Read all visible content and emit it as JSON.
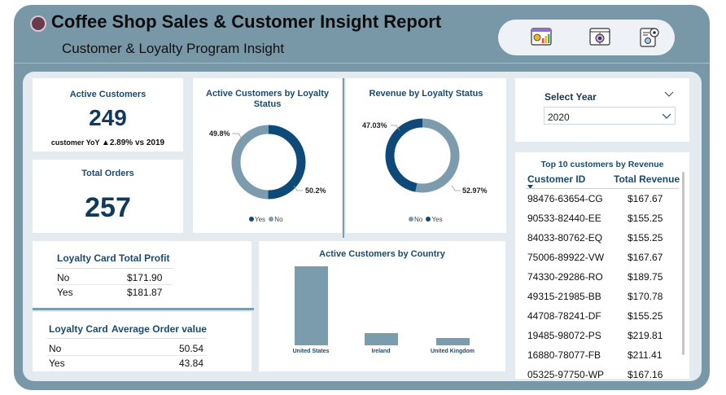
{
  "header": {
    "title": "Coffee Shop Sales & Customer Insight Report",
    "subtitle": "Customer & Loyalty Program Insight",
    "nav_icons": [
      "sales-dashboard-icon",
      "customer-insight-icon",
      "report-settings-icon"
    ]
  },
  "kpi_active": {
    "title": "Active Customers",
    "value": "249",
    "yoy_label": "customer YoY",
    "yoy_value": "▲2.89% vs 2019"
  },
  "kpi_orders": {
    "title": "Total Orders",
    "value": "257"
  },
  "donut_customers": {
    "title_line1": "Active Customers by Loyalty",
    "title_line2": "Status",
    "pct_left": "49.8%",
    "pct_right": "50.2%",
    "legend": [
      {
        "label": "Yes"
      },
      {
        "label": "No"
      }
    ]
  },
  "donut_revenue": {
    "title": "Revenue by Loyalty Status",
    "pct_left": "47.03%",
    "pct_right": "52.97%",
    "legend": [
      {
        "label": "No"
      },
      {
        "label": "Yes"
      }
    ]
  },
  "year_filter": {
    "label": "Select Year",
    "value": "2020"
  },
  "profit_table": {
    "headers": [
      "Loyalty Card",
      "Total Profit"
    ],
    "rows": [
      [
        "No",
        "$171.90"
      ],
      [
        "Yes",
        "$181.87"
      ]
    ]
  },
  "aov_table": {
    "headers": [
      "Loyalty Card",
      "Average Order value"
    ],
    "rows": [
      [
        "No",
        "50.54"
      ],
      [
        "Yes",
        "43.84"
      ]
    ]
  },
  "colors": {
    "frame": "#7898a8",
    "dark_series": "#0d4a7a",
    "light_series": "#7c9cad"
  },
  "chart_data": [
    {
      "type": "pie",
      "title": "Active Customers by Loyalty Status",
      "categories": [
        "Yes",
        "No"
      ],
      "values": [
        50.2,
        49.8
      ],
      "legend": "bottom"
    },
    {
      "type": "pie",
      "title": "Revenue by Loyalty Status",
      "categories": [
        "No",
        "Yes"
      ],
      "values": [
        47.03,
        52.97
      ],
      "legend": "bottom"
    },
    {
      "type": "bar",
      "title": "Active Customers by Country",
      "categories": [
        "United States",
        "Ireland",
        "United Kingdom"
      ],
      "values": [
        195,
        30,
        18
      ],
      "ylim": [
        0,
        200
      ]
    }
  ],
  "top_customers": {
    "title": "Top 10 customers by Revenue",
    "headers": [
      "Customer ID",
      "Total Revenue"
    ],
    "rows": [
      [
        "98476-63654-CG",
        "$167.67"
      ],
      [
        "90533-82440-EE",
        "$155.25"
      ],
      [
        "84033-80762-EQ",
        "$155.25"
      ],
      [
        "75006-89922-VW",
        "$167.67"
      ],
      [
        "74330-29286-RO",
        "$189.75"
      ],
      [
        "49315-21985-BB",
        "$170.78"
      ],
      [
        "44708-78241-DF",
        "$155.25"
      ],
      [
        "19485-98072-PS",
        "$219.81"
      ],
      [
        "16880-78077-FB",
        "$211.41"
      ],
      [
        "05325-97750-WP",
        "$167.16"
      ]
    ]
  }
}
